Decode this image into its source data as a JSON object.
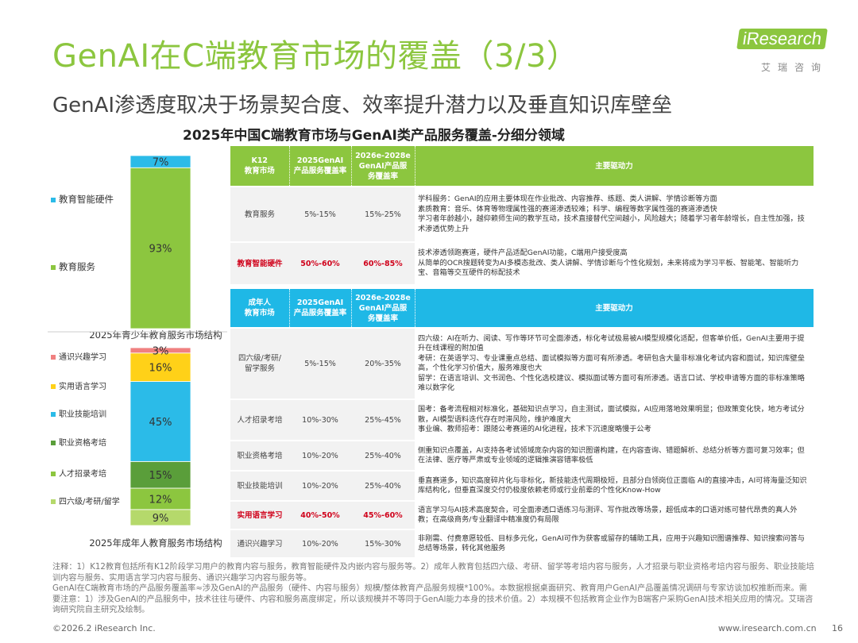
{
  "header": {
    "title": "GenAI在C端教育市场的覆盖（3/3）",
    "subtitle": "GenAI渗透度取决于场景契合度、效率提升潜力以及垂直知识库壁垒",
    "chart_title": "2025年中国C端教育市场与GenAI类产品服务覆盖-分细分领域",
    "logo_text": "iResearch",
    "logo_sub": "艾瑞咨询"
  },
  "chart_data": [
    {
      "type": "bar",
      "title": "2025年青少年教育服务市场结构",
      "stacked": true,
      "categories": [
        "2025年青少年教育服务市场结构"
      ],
      "series": [
        {
          "name": "教育服务",
          "values": [
            93
          ],
          "label": "93%",
          "color": "#8cc63f"
        },
        {
          "name": "教育智能硬件",
          "values": [
            7
          ],
          "label": "7%",
          "color": "#2bbbe8"
        }
      ],
      "ylim": [
        0,
        100
      ],
      "legend": "left"
    },
    {
      "type": "bar",
      "title": "2025年成年人教育服务市场结构",
      "stacked": true,
      "categories": [
        "2025年成年人教育服务市场结构"
      ],
      "series": [
        {
          "name": "四六级/考研/留学",
          "values": [
            9
          ],
          "label": "9%",
          "color": "#b5d96b"
        },
        {
          "name": "人才招录考培",
          "values": [
            12
          ],
          "label": "12%",
          "color": "#8cc63f"
        },
        {
          "name": "职业资格考培",
          "values": [
            15
          ],
          "label": "15%",
          "color": "#5a9e3a"
        },
        {
          "name": "职业技能培训",
          "values": [
            45
          ],
          "label": "45%",
          "color": "#2bbbe8"
        },
        {
          "name": "实用语言学习",
          "values": [
            16
          ],
          "label": "16%",
          "color": "#ffd118"
        },
        {
          "name": "通识兴趣学习",
          "values": [
            3
          ],
          "label": "3%",
          "color": "#f08080"
        }
      ],
      "ylim": [
        0,
        100
      ],
      "legend": "left"
    }
  ],
  "table": {
    "k12_header": [
      "K12\n教育市场",
      "2025GenAI\n产品服务覆盖率",
      "2026e-2028e\nGenAI产品服\n务覆盖率",
      "主要驱动力"
    ],
    "k12_rows": [
      {
        "name": "教育服务",
        "r2025": "5%-15%",
        "r2028": "15%-25%",
        "highlight": false,
        "driver": "学科服务：GenAI的应用主要体现在作业批改、内容推荐、练题、类人讲解、学情诊断等方面\n素质教育：音乐、体育等物理属性强的赛道渗透较难；科学、编程等数字属性强的赛道渗透快\n学习者年龄越小，越仰赖师生间的教学互动，技术直接替代空间越小，风险越大；随着学习者年龄增长，自主性加强，技术渗透优势上升"
      },
      {
        "name": "教育智能硬件",
        "r2025": "50%-60%",
        "r2028": "60%-85%",
        "highlight": true,
        "driver": "技术渗透领跑赛道，硬件产品适配GenAI功能，C端用户接受度高\n从简单的OCR搜题转变为AI多模态批改、类人讲解、学情诊断与个性化规划，未来将成为学习平板、智能笔、智能听力宝、音箱等交互硬件的标配技术"
      }
    ],
    "adult_header": [
      "成年人\n教育市场",
      "2025GenAI\n产品服务覆盖率",
      "2026e-2028e\nGenAI产品服\n务覆盖率",
      "主要驱动力"
    ],
    "adult_rows": [
      {
        "name": "四六级/考研/\n留学服务",
        "r2025": "5%-15%",
        "r2028": "20%-35%",
        "highlight": false,
        "driver": "四六级：AI在听力、阅读、写作等环节可全面渗透，标化考试极易被AI模型规模化适配，但客单价低，GenAI主要用于提升在线课程的附加值\n考研：在英语学习、专业课重点总结、面试模拟等方面可有所渗透。考研包含大量非标准化考试内容和面试，知识库壁垒高，个性化学习价值大，服务难度也大\n留学：在语言培训、文书润色、个性化选校建议、模拟面试等方面可有所渗透。语言口试、学校申请等方面的非标准策略难以数字化"
      },
      {
        "name": "人才招录考培",
        "r2025": "10%-30%",
        "r2028": "25%-45%",
        "highlight": false,
        "driver": "国考：备考流程相对标准化，基础知识点学习，自主测试，面试模拟，AI应用落地效果明显；但政策变化快，地方考试分散，AI模型语料迭代存在时滞风险，维护难度大\n事业编、教师招考：跟随公考赛道的AI化进程，技术下沉速度略慢于公考"
      },
      {
        "name": "职业资格考培",
        "r2025": "10%-20%",
        "r2028": "25%-40%",
        "highlight": false,
        "driver": "侧重知识点覆盖，AI支持各考试领域庞杂内容的知识图谱构建，在内容查询、错题解析、总结分析等方面可复习效率；但在法律、医疗等严肃或专业领域的逻辑推演容错率极低"
      },
      {
        "name": "职业技能培训",
        "r2025": "10%-20%",
        "r2028": "25%-40%",
        "highlight": false,
        "driver": "垂直赛道多，知识高度碎片化与非标化，新技能迭代周期极短，且部分白领岗位正面临 AI的直接冲击，AI可将海量泛知识库结构化，但垂直深度交付仍极度依赖老师或行业前辈的个性化Know-How"
      },
      {
        "name": "实用语言学习",
        "r2025": "40%-50%",
        "r2028": "45%-60%",
        "highlight": true,
        "driver": "语言学习与AI技术高度契合，可全面渗透口语练习与测评、写作批改等场景，超低成本的口语对练可替代昂贵的真人外教；在高级商务/专业翻译中精准度仍有局限"
      },
      {
        "name": "通识兴趣学习",
        "r2025": "10%-20%",
        "r2028": "15%-30%",
        "highlight": false,
        "driver": "非刚需、付费意愿较低、目标多元化，GenAI可作为获客或留存的辅助工具，应用于兴趣知识图谱推荐、知识搜索问答与总结等场景，转化其他服务"
      }
    ]
  },
  "notes": "注释：1）K12教育包括所有K12阶段学习用户的教育内容与服务，教育智能硬件及内嵌内容与服务等。2）成年人教育包括四六级、考研、留学等考培内容与服务，人才招录与职业资格考培内容与服务、职业技能培训内容与服务、实用语言学习内容与服务、通识兴趣学习内容与服务等。\nGenAI在C端教育市场的产品服务覆盖率≈涉及GenAI的产品服务（硬件、内容与服务）规模/整体教育产品服务规模*100%。本数据根据桌面研究、教育用户GenAI产品覆盖情况调研与专家访谈加权推断而来。需要注意：1）涉及GenAI的产品服务中，技术往往与硬件、内容和服务高度绑定，所以该规模并不等同于GenAI能力本身的技术价值。2）本规模不包括教育企业作为B端客户采购GenAI技术相关应用的情况。艾瑞咨询研究院自主研究及绘制。",
  "footer": {
    "copyright": "©2026.2 iResearch Inc.",
    "url": "www.iresearch.com.cn",
    "page": "16"
  }
}
